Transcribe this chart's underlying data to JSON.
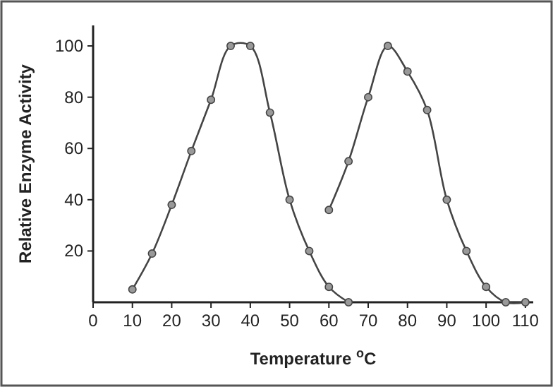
{
  "chart_data": {
    "type": "line",
    "xlabel": "Temperature $^{o}$C",
    "ylabel": "Relative Enzyme Activity",
    "xlim": [
      0,
      112
    ],
    "ylim": [
      0,
      108
    ],
    "xticks": [
      0,
      10,
      20,
      30,
      40,
      50,
      60,
      70,
      80,
      90,
      100,
      110
    ],
    "yticks": [
      20,
      40,
      60,
      80,
      100
    ],
    "marker": "circle",
    "line_style": "solid",
    "series": [
      {
        "color": "#444444",
        "x": [
          10,
          15,
          20,
          25,
          30,
          35,
          40,
          45,
          50,
          55,
          60,
          65
        ],
        "values": [
          5,
          19,
          38,
          59,
          79,
          100,
          100,
          74,
          40,
          20,
          6,
          0
        ]
      },
      {
        "color": "#444444",
        "x": [
          60,
          65,
          70,
          75,
          80,
          85,
          90,
          95,
          100,
          105,
          110
        ],
        "values": [
          36,
          55,
          80,
          100,
          90,
          75,
          40,
          20,
          6,
          0,
          0
        ]
      }
    ]
  }
}
